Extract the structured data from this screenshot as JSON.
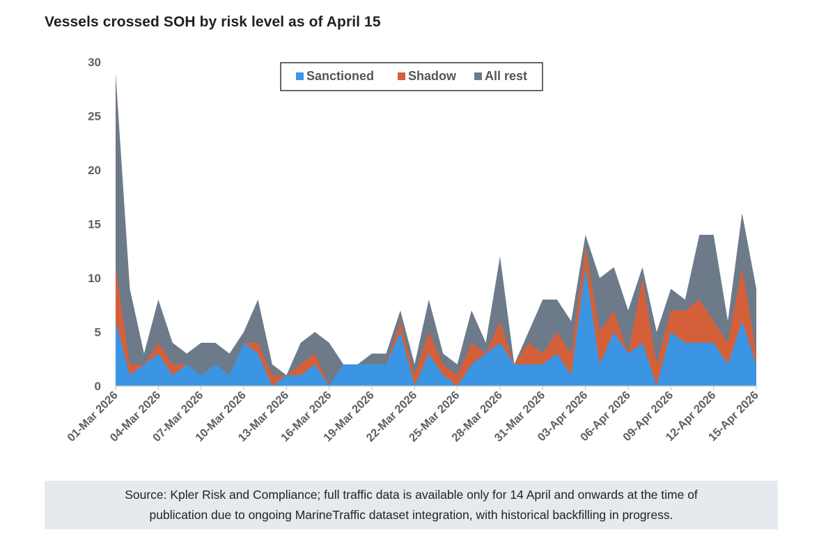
{
  "title": "Vessels crossed SOH by risk level as of April 15",
  "source": {
    "line1": "Source: Kpler Risk and Compliance; full traffic data is available only for 14 April and onwards at the time of",
    "line2": "publication due to ongoing MarineTraffic dataset integration, with historical backfilling in progress."
  },
  "chart_data": {
    "type": "area",
    "stacked": true,
    "title": "Vessels crossed SOH by risk level as of April 15",
    "xlabel": "",
    "ylabel": "",
    "ylim": [
      0,
      30
    ],
    "yticks": [
      0,
      5,
      10,
      15,
      20,
      25,
      30
    ],
    "categories": [
      "01-Mar 2026",
      "02-Mar 2026",
      "03-Mar 2026",
      "04-Mar 2026",
      "05-Mar 2026",
      "06-Mar 2026",
      "07-Mar 2026",
      "08-Mar 2026",
      "09-Mar 2026",
      "10-Mar 2026",
      "11-Mar 2026",
      "12-Mar 2026",
      "13-Mar 2026",
      "14-Mar 2026",
      "15-Mar 2026",
      "16-Mar 2026",
      "17-Mar 2026",
      "18-Mar 2026",
      "19-Mar 2026",
      "20-Mar 2026",
      "21-Mar 2026",
      "22-Mar 2026",
      "23-Mar 2026",
      "24-Mar 2026",
      "25-Mar 2026",
      "26-Mar 2026",
      "27-Mar 2026",
      "28-Mar 2026",
      "29-Mar 2026",
      "30-Mar 2026",
      "31-Mar 2026",
      "01-Apr 2026",
      "02-Apr 2026",
      "03-Apr 2026",
      "04-Apr 2026",
      "05-Apr 2026",
      "06-Apr 2026",
      "07-Apr 2026",
      "08-Apr 2026",
      "09-Apr 2026",
      "10-Apr 2026",
      "11-Apr 2026",
      "12-Apr 2026",
      "13-Apr 2026",
      "14-Apr 2026",
      "15-Apr 2026"
    ],
    "tick_labels": [
      "01-Mar 2026",
      "04-Mar 2026",
      "07-Mar 2026",
      "10-Mar 2026",
      "13-Mar 2026",
      "16-Mar 2026",
      "19-Mar 2026",
      "22-Mar 2026",
      "25-Mar 2026",
      "28-Mar 2026",
      "31-Mar 2026",
      "03-Apr 2026",
      "06-Apr 2026",
      "09-Apr 2026",
      "12-Apr 2026",
      "15-Apr 2026"
    ],
    "legend_position": "top-center",
    "series": [
      {
        "name": "Sanctioned",
        "color": "#3b95e3",
        "values": [
          6,
          1,
          2,
          3,
          1,
          2,
          1,
          2,
          1,
          4,
          3,
          0,
          1,
          1,
          2,
          0,
          2,
          2,
          2,
          2,
          5,
          0,
          3,
          1,
          0,
          2,
          3,
          4,
          2,
          2,
          2,
          3,
          1,
          11,
          2,
          5,
          3,
          4,
          0,
          5,
          4,
          4,
          4,
          2,
          6,
          2
        ]
      },
      {
        "name": "Shadow",
        "color": "#d4603a",
        "values": [
          5,
          1,
          0,
          1,
          1,
          0,
          0,
          0,
          0,
          0,
          1,
          1,
          0,
          1,
          1,
          0,
          0,
          0,
          0,
          0,
          1,
          1,
          2,
          1,
          1,
          2,
          0,
          2,
          0,
          2,
          1,
          2,
          2,
          2,
          3,
          2,
          0,
          6,
          2,
          2,
          3,
          4,
          2,
          2,
          5,
          1
        ]
      },
      {
        "name": "All rest",
        "color": "#6c7a8a",
        "values": [
          18,
          7,
          1,
          4,
          2,
          1,
          3,
          2,
          2,
          1,
          4,
          1,
          0,
          2,
          2,
          4,
          0,
          0,
          1,
          1,
          1,
          1,
          3,
          1,
          1,
          3,
          1,
          6,
          0,
          1,
          5,
          3,
          3,
          1,
          5,
          4,
          4,
          1,
          3,
          2,
          1,
          6,
          8,
          2,
          5,
          6
        ]
      }
    ]
  }
}
